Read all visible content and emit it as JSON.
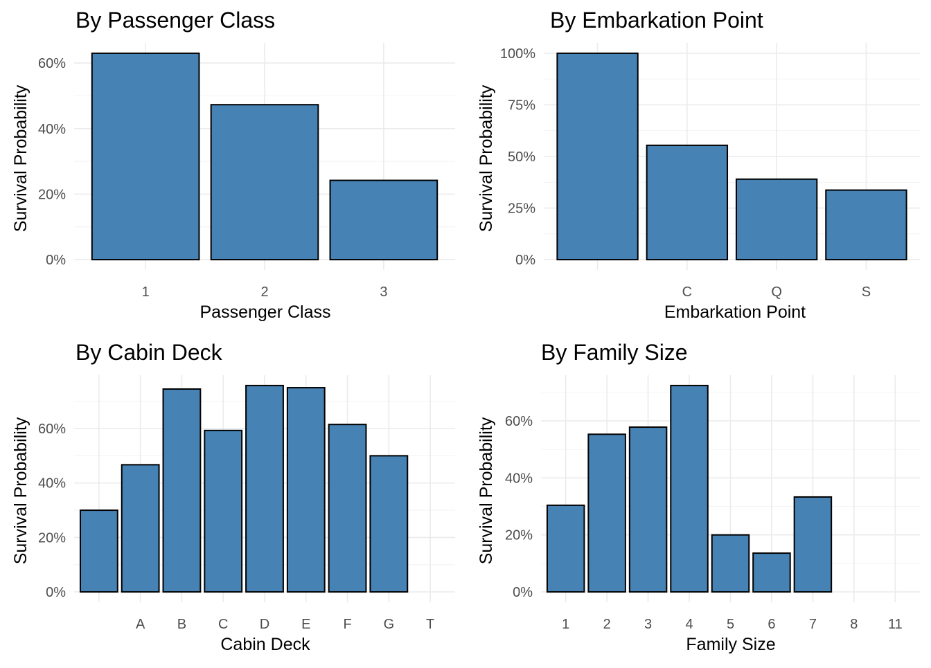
{
  "colors": {
    "bar_fill": "#4682b4",
    "bar_outline": "#000000",
    "grid": "#ebebeb",
    "background": "#ffffff"
  },
  "chart_data": [
    {
      "type": "bar",
      "title": "By Passenger Class",
      "xlabel": "Passenger Class",
      "ylabel": "Survival Probability",
      "categories": [
        "1",
        "2",
        "3"
      ],
      "values": [
        0.63,
        0.473,
        0.242
      ],
      "ylim": [
        0,
        0.63
      ],
      "yticks": [
        0,
        0.2,
        0.4,
        0.6
      ],
      "ytick_labels": [
        "0%",
        "20%",
        "40%",
        "60%"
      ],
      "grid": true,
      "legend": "none"
    },
    {
      "type": "bar",
      "title": "By Embarkation Point",
      "xlabel": "Embarkation Point",
      "ylabel": "Survival Probability",
      "categories": [
        "",
        "C",
        "Q",
        "S"
      ],
      "values": [
        1.0,
        0.554,
        0.39,
        0.337
      ],
      "ylim": [
        0,
        1.0
      ],
      "yticks": [
        0,
        0.25,
        0.5,
        0.75,
        1.0
      ],
      "ytick_labels": [
        "0%",
        "25%",
        "50%",
        "75%",
        "100%"
      ],
      "grid": true,
      "legend": "none"
    },
    {
      "type": "bar",
      "title": "By Cabin Deck",
      "xlabel": "Cabin Deck",
      "ylabel": "Survival Probability",
      "categories": [
        "",
        "A",
        "B",
        "C",
        "D",
        "E",
        "F",
        "G",
        "T"
      ],
      "values": [
        0.3,
        0.467,
        0.745,
        0.593,
        0.758,
        0.75,
        0.615,
        0.5,
        0.0
      ],
      "ylim": [
        0,
        0.758
      ],
      "yticks": [
        0,
        0.2,
        0.4,
        0.6
      ],
      "ytick_labels": [
        "0%",
        "20%",
        "40%",
        "60%"
      ],
      "grid": true,
      "legend": "none"
    },
    {
      "type": "bar",
      "title": "By Family Size",
      "xlabel": "Family Size",
      "ylabel": "Survival Probability",
      "categories": [
        "1",
        "2",
        "3",
        "4",
        "5",
        "6",
        "7",
        "8",
        "11"
      ],
      "values": [
        0.304,
        0.553,
        0.578,
        0.724,
        0.2,
        0.136,
        0.333,
        0.0,
        0.0
      ],
      "ylim": [
        0,
        0.724
      ],
      "yticks": [
        0,
        0.2,
        0.4,
        0.6
      ],
      "ytick_labels": [
        "0%",
        "20%",
        "40%",
        "60%"
      ],
      "grid": true,
      "legend": "none"
    }
  ]
}
